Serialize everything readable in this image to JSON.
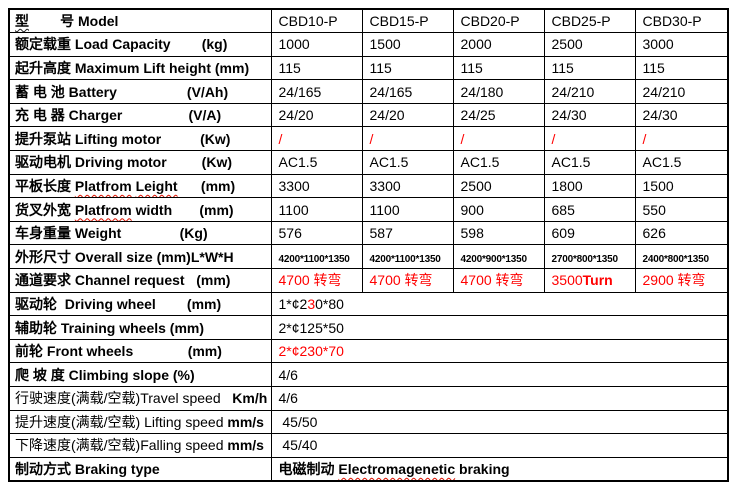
{
  "page": {
    "background": "#ffffff"
  },
  "colors": {
    "red": "#ff0000",
    "squiggle": "#dd1100",
    "border": "#000000"
  },
  "table": {
    "columns": [
      "CBD10-P",
      "CBD15-P",
      "CBD20-P",
      "CBD25-P",
      "CBD30-P"
    ],
    "rows": [
      {
        "name": "model",
        "label": [
          {
            "t": "型",
            "b": true,
            "wd": true
          },
          {
            "t": "        号 Model",
            "b": true
          }
        ],
        "values": [
          [
            {
              "t": "CBD10-P"
            }
          ],
          [
            {
              "t": "CBD15-P"
            }
          ],
          [
            {
              "t": "CBD20-P"
            }
          ],
          [
            {
              "t": "CBD25-P"
            }
          ],
          [
            {
              "t": "CBD30-P"
            }
          ]
        ]
      },
      {
        "name": "load-capacity",
        "label": [
          {
            "t": "额定载重 Load Capacity        (kg)",
            "b": true
          }
        ],
        "values": [
          [
            {
              "t": "1000"
            }
          ],
          [
            {
              "t": "1500"
            }
          ],
          [
            {
              "t": "2000"
            }
          ],
          [
            {
              "t": "2500"
            }
          ],
          [
            {
              "t": "3000"
            }
          ]
        ]
      },
      {
        "name": "max-lift-height",
        "label": [
          {
            "t": "起升高度 Maximum Lift height (mm)",
            "b": true
          }
        ],
        "values": [
          [
            {
              "t": "115"
            }
          ],
          [
            {
              "t": "115"
            }
          ],
          [
            {
              "t": "115"
            }
          ],
          [
            {
              "t": "115"
            }
          ],
          [
            {
              "t": "115"
            }
          ]
        ]
      },
      {
        "name": "battery",
        "label": [
          {
            "t": "蓄 电 池 Battery                  (V/Ah)",
            "b": true
          }
        ],
        "values": [
          [
            {
              "t": "24/165"
            }
          ],
          [
            {
              "t": "24/165"
            }
          ],
          [
            {
              "t": "24/180"
            }
          ],
          [
            {
              "t": "24/210"
            }
          ],
          [
            {
              "t": "24/210"
            }
          ]
        ]
      },
      {
        "name": "charger",
        "label": [
          {
            "t": "充 电 器 Charger                 (V/A)",
            "b": true
          }
        ],
        "values": [
          [
            {
              "t": "24/20"
            }
          ],
          [
            {
              "t": "24/20"
            }
          ],
          [
            {
              "t": "24/25"
            }
          ],
          [
            {
              "t": "24/30"
            }
          ],
          [
            {
              "t": "24/30"
            }
          ]
        ]
      },
      {
        "name": "lifting-motor",
        "label": [
          {
            "t": "提升泵站 Lifting motor          (Kw)",
            "b": true
          }
        ],
        "values": [
          [
            {
              "t": "/",
              "c": "#ff0000"
            }
          ],
          [
            {
              "t": "/",
              "c": "#ff0000"
            }
          ],
          [
            {
              "t": "/",
              "c": "#ff0000"
            }
          ],
          [
            {
              "t": "/",
              "c": "#ff0000"
            }
          ],
          [
            {
              "t": "/",
              "c": "#ff0000"
            }
          ]
        ]
      },
      {
        "name": "driving-motor",
        "label": [
          {
            "t": "驱动电机 Driving motor         (Kw)",
            "b": true
          }
        ],
        "values": [
          [
            {
              "t": "AC1.5"
            }
          ],
          [
            {
              "t": "AC1.5"
            }
          ],
          [
            {
              "t": "AC1.5"
            }
          ],
          [
            {
              "t": "AC1.5"
            }
          ],
          [
            {
              "t": "AC1.5"
            }
          ]
        ]
      },
      {
        "name": "platform-length",
        "label": [
          {
            "t": "平板长度 ",
            "b": true
          },
          {
            "t": "Platfrom",
            "b": true,
            "w": true
          },
          {
            "t": " ",
            "b": true
          },
          {
            "t": "Leight",
            "b": true,
            "w": true
          },
          {
            "t": "      (mm)",
            "b": true
          }
        ],
        "values": [
          [
            {
              "t": "3300"
            }
          ],
          [
            {
              "t": "3300"
            }
          ],
          [
            {
              "t": "2500"
            }
          ],
          [
            {
              "t": "1800"
            }
          ],
          [
            {
              "t": "1500"
            }
          ]
        ]
      },
      {
        "name": "platform-width",
        "label": [
          {
            "t": "货叉外宽 ",
            "b": true
          },
          {
            "t": "Platfrom",
            "b": true,
            "w": true
          },
          {
            "t": " width       (mm)",
            "b": true
          }
        ],
        "values": [
          [
            {
              "t": "1100"
            }
          ],
          [
            {
              "t": "1100"
            }
          ],
          [
            {
              "t": "900"
            }
          ],
          [
            {
              "t": "685"
            }
          ],
          [
            {
              "t": "550"
            }
          ]
        ]
      },
      {
        "name": "weight",
        "label": [
          {
            "t": "车身重量 Weight               (Kg)",
            "b": true
          }
        ],
        "values": [
          [
            {
              "t": "576"
            }
          ],
          [
            {
              "t": "587"
            }
          ],
          [
            {
              "t": "598"
            }
          ],
          [
            {
              "t": "609"
            }
          ],
          [
            {
              "t": "626"
            }
          ]
        ]
      },
      {
        "name": "overall-size",
        "label": [
          {
            "t": "外形尺寸 Overall size (mm)L*W*H",
            "b": true
          }
        ],
        "values": [
          [
            {
              "t": "4200*1100*1350",
              "sm": true
            }
          ],
          [
            {
              "t": "4200*1100*1350",
              "sm": true
            }
          ],
          [
            {
              "t": "4200*900*1350",
              "sm": true
            }
          ],
          [
            {
              "t": "2700*800*1350",
              "sm": true
            }
          ],
          [
            {
              "t": "2400*800*1350",
              "sm": true
            }
          ]
        ]
      },
      {
        "name": "channel-request",
        "label": [
          {
            "t": "通道要求 Channel request   (mm)",
            "b": true
          }
        ],
        "values": [
          [
            {
              "t": "4700 转弯",
              "c": "#ff0000"
            }
          ],
          [
            {
              "t": "4700 转弯",
              "c": "#ff0000"
            }
          ],
          [
            {
              "t": "4700 转弯",
              "c": "#ff0000"
            }
          ],
          [
            {
              "t": "3500",
              "c": "#ff0000"
            },
            {
              "t": "Turn",
              "c": "#ff0000",
              "b": true
            }
          ],
          [
            {
              "t": "2900 转弯",
              "c": "#ff0000"
            }
          ]
        ]
      },
      {
        "name": "driving-wheel",
        "label": [
          {
            "t": "驱动轮  Driving wheel        (mm)",
            "b": true
          }
        ],
        "span": [
          {
            "t": "1*¢2"
          },
          {
            "t": "3",
            "c": "#ff0000"
          },
          {
            "t": "0*80"
          }
        ]
      },
      {
        "name": "training-wheels",
        "label": [
          {
            "t": "辅助轮 Training wheels (mm)",
            "b": true
          }
        ],
        "span": [
          {
            "t": "2*¢125*50"
          }
        ]
      },
      {
        "name": "front-wheels",
        "label": [
          {
            "t": "前轮 Front wheels              (mm)",
            "b": true
          }
        ],
        "span": [
          {
            "t": "2*¢230*70",
            "c": "#ff0000"
          }
        ]
      },
      {
        "name": "climbing-slope",
        "label": [
          {
            "t": "爬 坡 度 Climbing slope (%)",
            "b": true
          }
        ],
        "span": [
          {
            "t": "4/6"
          }
        ]
      },
      {
        "name": "travel-speed",
        "label": [
          {
            "t": "行驶速度(满载/空载)Travel speed   "
          },
          {
            "t": "Km/h",
            "b": true
          }
        ],
        "span": [
          {
            "t": "4/6"
          }
        ]
      },
      {
        "name": "lifting-speed",
        "label": [
          {
            "t": "提升速度(满载/空载) Lifting speed "
          },
          {
            "t": "mm/s",
            "b": true
          }
        ],
        "span": [
          {
            "t": " 45/50"
          }
        ]
      },
      {
        "name": "falling-speed",
        "label": [
          {
            "t": "下降速度(满载/空载)Falling speed "
          },
          {
            "t": "mm/s",
            "b": true
          }
        ],
        "span": [
          {
            "t": " 45/40"
          }
        ]
      },
      {
        "name": "braking-type",
        "label": [
          {
            "t": "制动方式 Braking type",
            "b": true
          }
        ],
        "span": [
          {
            "t": "电磁制动 ",
            "b": true
          },
          {
            "t": "Electromagenetic",
            "b": true,
            "w": true
          },
          {
            "t": " braking",
            "b": true
          }
        ]
      }
    ]
  }
}
